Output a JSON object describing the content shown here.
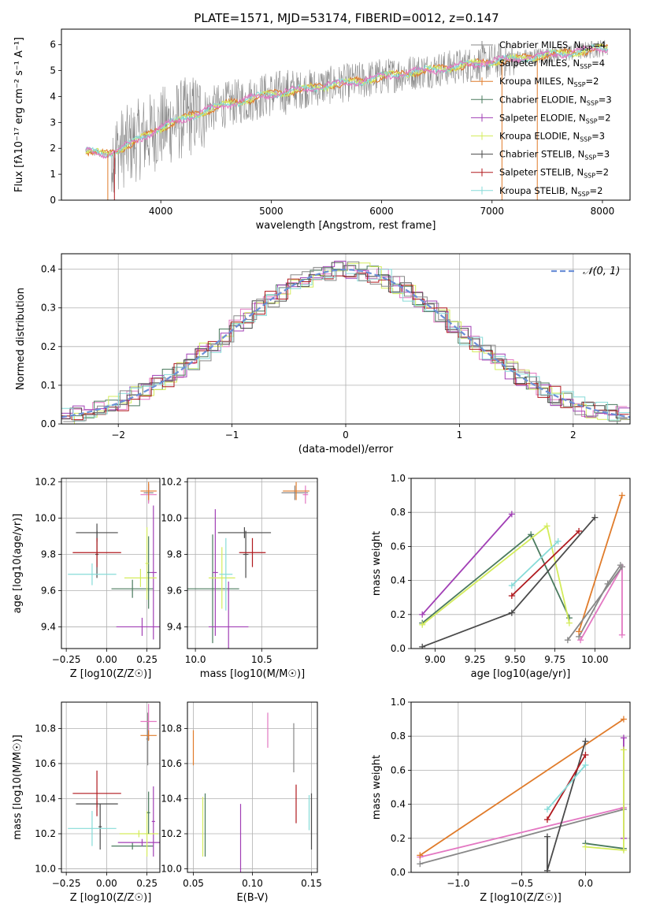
{
  "models": [
    {
      "name": "Chabrier MILES",
      "nssp": "4",
      "color": "#888888"
    },
    {
      "name": "Salpeter MILES",
      "nssp": "4",
      "color": "#e377c2"
    },
    {
      "name": "Kroupa MILES",
      "nssp": "2",
      "color": "#e07b2a"
    },
    {
      "name": "Chabrier ELODIE",
      "nssp": "3",
      "color": "#4a7a5e"
    },
    {
      "name": "Salpeter ELODIE",
      "nssp": "2",
      "color": "#a13fb5"
    },
    {
      "name": "Kroupa ELODIE",
      "nssp": "3",
      "color": "#d4ec5c"
    },
    {
      "name": "Chabrier STELIB",
      "nssp": "3",
      "color": "#4a4a4a"
    },
    {
      "name": "Salpeter STELIB",
      "nssp": "2",
      "color": "#b0191e"
    },
    {
      "name": "Kroupa STELIB",
      "nssp": "2",
      "color": "#86dbd8"
    }
  ],
  "chart_data": [
    {
      "type": "line",
      "title": "PLATE=1571, MJD=53174, FIBERID=0012, z=0.147",
      "xlabel": "wavelength [Angstrom, rest frame]",
      "ylabel": "Flux [fλ10⁻¹⁷ erg cm⁻² s⁻¹ A⁻¹]",
      "xlim": [
        3100,
        8250
      ],
      "ylim": [
        0,
        6.6
      ],
      "xticks": [
        4000,
        5000,
        6000,
        7000,
        8000
      ],
      "yticks": [
        0,
        1,
        2,
        3,
        4,
        5,
        6
      ],
      "legend_position": "upper-right",
      "legend_nssp_prefix": "N",
      "legend_nssp_sub": "SSP",
      "continuum_x": [
        3320,
        3500,
        3700,
        4000,
        4300,
        4600,
        5000,
        5400,
        5800,
        6200,
        6600,
        7000,
        7400,
        7800,
        8050
      ],
      "continuum_y": [
        1.9,
        1.75,
        2.1,
        2.8,
        3.3,
        3.7,
        4.1,
        4.35,
        4.6,
        4.9,
        5.1,
        5.35,
        5.55,
        5.75,
        5.9
      ]
    },
    {
      "type": "histogram",
      "xlabel": "(data-model)/error",
      "ylabel": "Normed distribution",
      "xlim": [
        -2.5,
        2.5
      ],
      "ylim": [
        0,
        0.44
      ],
      "xticks": [
        -2,
        -1,
        0,
        1,
        2
      ],
      "yticks": [
        0.0,
        0.1,
        0.2,
        0.3,
        0.4
      ],
      "reference_curve": {
        "name": "𝒩(0, 1)",
        "mu": 0,
        "sigma": 1,
        "color": "#6b8fd6"
      },
      "legend_position": "upper-right"
    },
    {
      "type": "errorbar",
      "xlabel": "Z [log10(Z/Z☉)]",
      "ylabel": "age  [log10(age/yr)]",
      "xlim": [
        -0.28,
        0.33
      ],
      "ylim": [
        9.28,
        10.22
      ],
      "xticks": [
        -0.25,
        0.0,
        0.25
      ],
      "yticks": [
        9.4,
        9.6,
        9.8,
        10.0,
        10.2
      ],
      "points": [
        {
          "model": 0,
          "x": 0.26,
          "y": 10.14,
          "xerr": 0.03,
          "yerr": 0.05
        },
        {
          "model": 1,
          "x": 0.26,
          "y": 10.13,
          "xerr": 0.05,
          "yerr": 0.05
        },
        {
          "model": 2,
          "x": 0.26,
          "y": 10.15,
          "xerr": 0.05,
          "yerr": 0.05
        },
        {
          "model": 3,
          "x": 0.16,
          "y": 9.61,
          "xerr": 0.13,
          "yerr": 0.05
        },
        {
          "model": 4,
          "x": 0.22,
          "y": 9.4,
          "xerr": 0.16,
          "yerr": 0.05
        },
        {
          "model": 4,
          "x": 0.29,
          "y": 9.7,
          "xerr": 0.02,
          "yerr": 0.37
        },
        {
          "model": 5,
          "x": 0.21,
          "y": 9.67,
          "xerr": 0.1,
          "yerr": 0.05
        },
        {
          "model": 6,
          "x": -0.06,
          "y": 9.92,
          "xerr": 0.13,
          "yerr": 0.05
        },
        {
          "model": 6,
          "x": -0.06,
          "y": 9.8,
          "xerr": 0.01,
          "yerr": 0.13
        },
        {
          "model": 7,
          "x": -0.06,
          "y": 9.81,
          "xerr": 0.15,
          "yerr": 0.08
        },
        {
          "model": 8,
          "x": -0.09,
          "y": 9.69,
          "xerr": 0.15,
          "yerr": 0.06
        },
        {
          "model": 3,
          "x": 0.26,
          "y": 9.7,
          "xerr": 0.01,
          "yerr": 0.2
        },
        {
          "model": 5,
          "x": 0.25,
          "y": 9.75,
          "xerr": 0.01,
          "yerr": 0.2
        }
      ]
    },
    {
      "type": "errorbar",
      "xlabel": "mass [log10(M/M☉)]",
      "ylabel": "",
      "xlim": [
        9.94,
        10.92
      ],
      "ylim": [
        9.28,
        10.22
      ],
      "xticks": [
        10.0,
        10.5
      ],
      "yticks": [
        9.4,
        9.6,
        9.8,
        10.0,
        10.2
      ],
      "points": [
        {
          "model": 0,
          "x": 10.75,
          "y": 10.14,
          "xerr": 0.1,
          "yerr": 0.04
        },
        {
          "model": 1,
          "x": 10.83,
          "y": 10.13,
          "xerr": 0.02,
          "yerr": 0.05
        },
        {
          "model": 2,
          "x": 10.76,
          "y": 10.15,
          "xerr": 0.1,
          "yerr": 0.05
        },
        {
          "model": 3,
          "x": 10.13,
          "y": 9.61,
          "xerr": 0.2,
          "yerr": 0.3
        },
        {
          "model": 4,
          "x": 10.25,
          "y": 9.4,
          "xerr": 0.15,
          "yerr": 0.25
        },
        {
          "model": 4,
          "x": 10.15,
          "y": 9.7,
          "xerr": 0.02,
          "yerr": 0.35
        },
        {
          "model": 5,
          "x": 10.2,
          "y": 9.67,
          "xerr": 0.1,
          "yerr": 0.17
        },
        {
          "model": 6,
          "x": 10.37,
          "y": 9.92,
          "xerr": 0.2,
          "yerr": 0.03
        },
        {
          "model": 6,
          "x": 10.38,
          "y": 9.8,
          "xerr": 0.02,
          "yerr": 0.13
        },
        {
          "model": 7,
          "x": 10.43,
          "y": 9.81,
          "xerr": 0.1,
          "yerr": 0.08
        },
        {
          "model": 8,
          "x": 10.23,
          "y": 9.69,
          "xerr": 0.05,
          "yerr": 0.2
        }
      ]
    },
    {
      "type": "line",
      "xlabel": "age  [log10(age/yr)]",
      "ylabel": "mass weight",
      "xlim": [
        8.85,
        10.22
      ],
      "ylim": [
        0,
        1
      ],
      "xticks": [
        9.0,
        9.25,
        9.5,
        9.75,
        10.0
      ],
      "yticks": [
        0.0,
        0.2,
        0.4,
        0.6,
        0.8,
        1.0
      ],
      "series": [
        {
          "model": 0,
          "x": [
            9.9,
            10.08,
            10.16
          ],
          "y": [
            0.07,
            0.38,
            0.49
          ]
        },
        {
          "model": 1,
          "x": [
            9.91,
            10.17,
            10.17
          ],
          "y": [
            0.05,
            0.48,
            0.08
          ]
        },
        {
          "model": 2,
          "x": [
            9.9,
            10.17
          ],
          "y": [
            0.1,
            0.9
          ]
        },
        {
          "model": 3,
          "x": [
            8.92,
            9.6,
            9.84
          ],
          "y": [
            0.15,
            0.67,
            0.18
          ]
        },
        {
          "model": 4,
          "x": [
            8.92,
            9.48
          ],
          "y": [
            0.2,
            0.79
          ]
        },
        {
          "model": 5,
          "x": [
            8.92,
            9.7,
            9.84
          ],
          "y": [
            0.14,
            0.72,
            0.15
          ]
        },
        {
          "model": 6,
          "x": [
            8.92,
            9.48,
            10.0
          ],
          "y": [
            0.01,
            0.21,
            0.77
          ]
        },
        {
          "model": 7,
          "x": [
            9.48,
            9.9
          ],
          "y": [
            0.31,
            0.69
          ]
        },
        {
          "model": 8,
          "x": [
            9.48,
            9.77
          ],
          "y": [
            0.37,
            0.63
          ]
        },
        {
          "model": 0,
          "x": [
            9.83,
            10.17
          ],
          "y": [
            0.05,
            0.48
          ]
        }
      ]
    },
    {
      "type": "errorbar",
      "xlabel": "Z [log10(Z/Z☉)]",
      "ylabel": "mass [log10(M/M☉)]",
      "xlim": [
        -0.28,
        0.33
      ],
      "ylim": [
        9.98,
        10.95
      ],
      "xticks": [
        -0.25,
        0.0,
        0.25
      ],
      "yticks": [
        10.0,
        10.2,
        10.4,
        10.6,
        10.8
      ],
      "points": [
        {
          "model": 0,
          "x": 0.255,
          "y": 10.74,
          "xerr": 0.01,
          "yerr": 0.15
        },
        {
          "model": 1,
          "x": 0.26,
          "y": 10.84,
          "xerr": 0.05,
          "yerr": 0.1
        },
        {
          "model": 2,
          "x": 0.26,
          "y": 10.76,
          "xerr": 0.05,
          "yerr": 0.03
        },
        {
          "model": 3,
          "x": 0.16,
          "y": 10.13,
          "xerr": 0.13,
          "yerr": 0.02
        },
        {
          "model": 4,
          "x": 0.22,
          "y": 10.15,
          "xerr": 0.15,
          "yerr": 0.02
        },
        {
          "model": 4,
          "x": 0.29,
          "y": 10.27,
          "xerr": 0.01,
          "yerr": 0.2
        },
        {
          "model": 5,
          "x": 0.2,
          "y": 10.2,
          "xerr": 0.12,
          "yerr": 0.02
        },
        {
          "model": 5,
          "x": 0.25,
          "y": 10.2,
          "xerr": 0.01,
          "yerr": 0.13
        },
        {
          "model": 3,
          "x": 0.26,
          "y": 10.32,
          "xerr": 0.01,
          "yerr": 0.12
        },
        {
          "model": 6,
          "x": -0.06,
          "y": 10.37,
          "xerr": 0.13,
          "yerr": 0.02
        },
        {
          "model": 6,
          "x": -0.04,
          "y": 10.24,
          "xerr": 0.01,
          "yerr": 0.13
        },
        {
          "model": 7,
          "x": -0.06,
          "y": 10.43,
          "xerr": 0.15,
          "yerr": 0.13
        },
        {
          "model": 8,
          "x": -0.09,
          "y": 10.23,
          "xerr": 0.15,
          "yerr": 0.1
        }
      ]
    },
    {
      "type": "errorbar",
      "xlabel": "E(B-V)",
      "ylabel": "",
      "xlim": [
        0.045,
        0.155
      ],
      "ylim": [
        9.98,
        10.95
      ],
      "xticks": [
        0.05,
        0.1,
        0.15
      ],
      "yticks": [
        10.0,
        10.2,
        10.4,
        10.6,
        10.8
      ],
      "points": [
        {
          "model": 2,
          "x": 0.05,
          "y": 10.69,
          "xerr": 0,
          "yerr": 0.1
        },
        {
          "model": 5,
          "x": 0.058,
          "y": 10.24,
          "xerr": 0,
          "yerr": 0.17
        },
        {
          "model": 3,
          "x": 0.06,
          "y": 10.25,
          "xerr": 0,
          "yerr": 0.18
        },
        {
          "model": 4,
          "x": 0.09,
          "y": 10.17,
          "xerr": 0,
          "yerr": 0.2
        },
        {
          "model": 1,
          "x": 0.113,
          "y": 10.79,
          "xerr": 0,
          "yerr": 0.1
        },
        {
          "model": 0,
          "x": 0.135,
          "y": 10.69,
          "xerr": 0,
          "yerr": 0.14
        },
        {
          "model": 7,
          "x": 0.137,
          "y": 10.37,
          "xerr": 0,
          "yerr": 0.11
        },
        {
          "model": 6,
          "x": 0.15,
          "y": 10.27,
          "xerr": 0,
          "yerr": 0.16
        },
        {
          "model": 8,
          "x": 0.148,
          "y": 10.32,
          "xerr": 0,
          "yerr": 0.1
        }
      ]
    },
    {
      "type": "line",
      "xlabel": "Z [log10(Z/Z☉)]",
      "ylabel": "mass weight",
      "xlim": [
        -1.37,
        0.35
      ],
      "ylim": [
        0,
        1
      ],
      "xticks": [
        -1.0,
        -0.5,
        0.0
      ],
      "yticks": [
        0.0,
        0.2,
        0.4,
        0.6,
        0.8,
        1.0
      ],
      "series": [
        {
          "model": 0,
          "x": [
            -1.3,
            0.3
          ],
          "y": [
            0.05,
            0.37
          ]
        },
        {
          "model": 1,
          "x": [
            -1.3,
            0.3
          ],
          "y": [
            0.09,
            0.38
          ]
        },
        {
          "model": 2,
          "x": [
            -1.3,
            0.3
          ],
          "y": [
            0.1,
            0.9
          ]
        },
        {
          "model": 3,
          "x": [
            0.0,
            0.3
          ],
          "y": [
            0.17,
            0.14
          ]
        },
        {
          "model": 4,
          "x": [
            0.3,
            0.3
          ],
          "y": [
            0.2,
            0.79
          ]
        },
        {
          "model": 5,
          "x": [
            0.0,
            0.3,
            0.3
          ],
          "y": [
            0.15,
            0.13,
            0.72
          ]
        },
        {
          "model": 6,
          "x": [
            -0.3,
            -0.3,
            0.0
          ],
          "y": [
            0.21,
            0.01,
            0.77
          ]
        },
        {
          "model": 7,
          "x": [
            -0.3,
            0.0
          ],
          "y": [
            0.31,
            0.69
          ]
        },
        {
          "model": 8,
          "x": [
            -0.3,
            0.0
          ],
          "y": [
            0.37,
            0.63
          ]
        }
      ]
    }
  ]
}
